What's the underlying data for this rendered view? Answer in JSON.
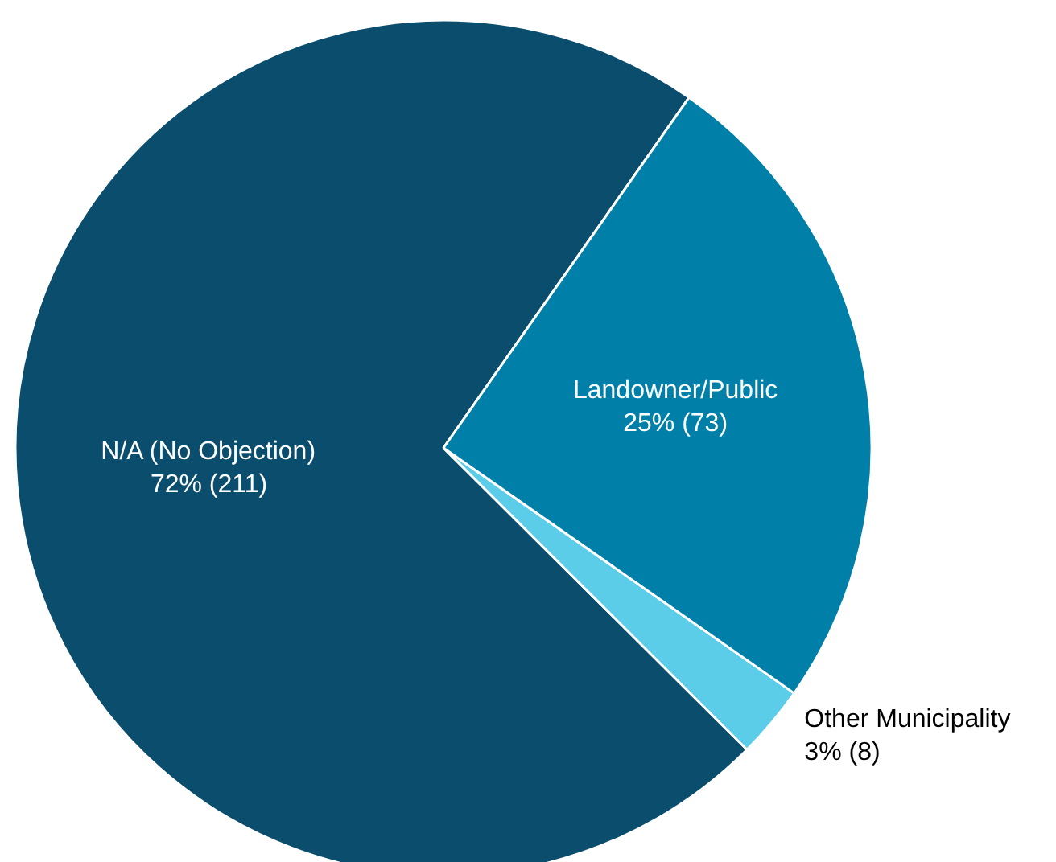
{
  "chart_data": {
    "type": "pie",
    "categories": [
      "N/A (No Objection)",
      "Other Municipality",
      "Landowner/Public"
    ],
    "values": [
      211,
      8,
      73
    ],
    "colors": [
      "#0b4d6d",
      "#5ccde9",
      "#0080a8"
    ],
    "value_labels": [
      "72% (211)",
      "3% (8)",
      "25% (73)"
    ]
  }
}
